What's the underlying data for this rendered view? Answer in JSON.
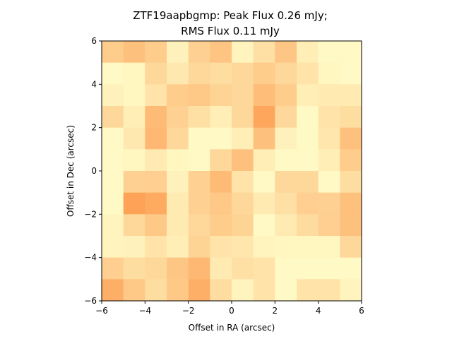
{
  "chart_data": {
    "type": "heatmap",
    "title_lines": [
      "ZTF19aapbgmp: Peak Flux 0.26 mJy;",
      "RMS Flux 0.11 mJy"
    ],
    "xlabel": "Offset in RA (arcsec)",
    "ylabel": "Offset in Dec (arcsec)",
    "xlim": [
      -6,
      6
    ],
    "ylim": [
      -6,
      6
    ],
    "xticks": [
      -6,
      -4,
      -2,
      0,
      2,
      4,
      6
    ],
    "yticks": [
      -6,
      -4,
      -2,
      0,
      2,
      4,
      6
    ],
    "xtick_labels": [
      "−6",
      "−4",
      "−2",
      "0",
      "2",
      "4",
      "6"
    ],
    "ytick_labels": [
      "−6",
      "−4",
      "−2",
      "0",
      "2",
      "4",
      "6"
    ],
    "grid": false,
    "colormap": "YlOrRd",
    "color_low": "#ffffcc",
    "color_high": "#fd8d3c",
    "value_range": [
      0.0,
      1.0
    ],
    "rows_top_to_bottom": [
      [
        0.45,
        0.55,
        0.45,
        0.12,
        0.4,
        0.52,
        0.1,
        0.28,
        0.5,
        0.15,
        0.05,
        0.05
      ],
      [
        0.05,
        0.08,
        0.35,
        0.2,
        0.35,
        0.3,
        0.35,
        0.45,
        0.35,
        0.25,
        0.08,
        0.05
      ],
      [
        0.12,
        0.08,
        0.25,
        0.45,
        0.48,
        0.38,
        0.35,
        0.58,
        0.45,
        0.15,
        0.18,
        0.18
      ],
      [
        0.35,
        0.15,
        0.6,
        0.4,
        0.28,
        0.15,
        0.35,
        0.78,
        0.35,
        0.05,
        0.25,
        0.3
      ],
      [
        0.05,
        0.2,
        0.62,
        0.35,
        0.05,
        0.05,
        0.15,
        0.55,
        0.12,
        0.05,
        0.22,
        0.55
      ],
      [
        0.05,
        0.08,
        0.18,
        0.08,
        0.05,
        0.35,
        0.55,
        0.15,
        0.05,
        0.05,
        0.15,
        0.45
      ],
      [
        0.05,
        0.4,
        0.42,
        0.12,
        0.4,
        0.6,
        0.25,
        0.05,
        0.35,
        0.35,
        0.05,
        0.3
      ],
      [
        0.05,
        0.82,
        0.75,
        0.18,
        0.4,
        0.48,
        0.35,
        0.18,
        0.28,
        0.42,
        0.4,
        0.55
      ],
      [
        0.1,
        0.35,
        0.48,
        0.18,
        0.35,
        0.45,
        0.38,
        0.05,
        0.18,
        0.32,
        0.42,
        0.55
      ],
      [
        0.1,
        0.12,
        0.25,
        0.15,
        0.38,
        0.25,
        0.22,
        0.1,
        0.08,
        0.08,
        0.08,
        0.35
      ],
      [
        0.42,
        0.3,
        0.35,
        0.5,
        0.62,
        0.18,
        0.28,
        0.25,
        0.05,
        0.05,
        0.05,
        0.05
      ],
      [
        0.7,
        0.48,
        0.3,
        0.48,
        0.7,
        0.3,
        0.1,
        0.25,
        0.05,
        0.25,
        0.25,
        0.1
      ]
    ]
  }
}
